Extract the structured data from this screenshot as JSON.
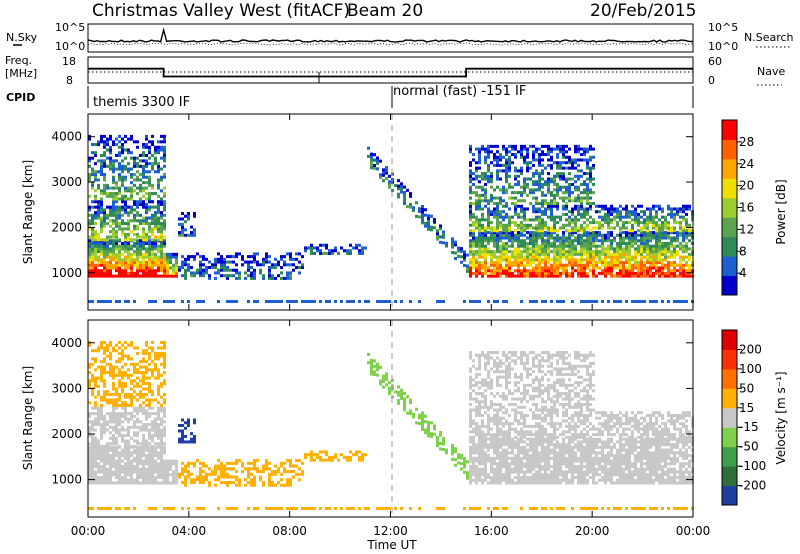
{
  "header": {
    "station": "Christmas Valley West (fitACF)",
    "beam": "Beam 20",
    "date": "20/Feb/2015"
  },
  "noise_panel": {
    "left_label": "N.Sky",
    "right_label": "N.Search",
    "y_ticks": [
      "10^5",
      "10^0"
    ],
    "right_ticks": [
      "10^5",
      "10^0"
    ]
  },
  "freq_panel": {
    "left_label_1": "Freq.",
    "left_label_2": "[MHz]",
    "right_label": "Nave",
    "left_ticks": [
      "18",
      "8"
    ],
    "right_ticks": [
      "60",
      "0"
    ]
  },
  "cpid_panel": {
    "label": "CPID",
    "modes": [
      "themis 3300 IF",
      "normal (fast) -151 IF"
    ]
  },
  "power_panel": {
    "ylabel": "Slant Range [km]",
    "colorbar_label": "Power [dB]",
    "colorbar_ticks": [
      "28",
      "24",
      "20",
      "16",
      "12",
      "8",
      "4"
    ],
    "colors": [
      "#0000cc",
      "#1d5fd1",
      "#2e8b57",
      "#5aa34f",
      "#9acd32",
      "#f0e000",
      "#ffa500",
      "#ff6000",
      "#ff0000"
    ]
  },
  "velocity_panel": {
    "ylabel": "Slant Range [km]",
    "colorbar_label": "Velocity [m s⁻¹]",
    "colorbar_ticks": [
      "200",
      "100",
      "50",
      "15",
      "-15",
      "-50",
      "-100",
      "-200"
    ],
    "colors": [
      "#1e3fa0",
      "#2e6e3a",
      "#3fa04a",
      "#7fd04a",
      "#c8c8c8",
      "#ffb000",
      "#ff7000",
      "#ff3000",
      "#e00000"
    ]
  },
  "chart_data": {
    "type": "heatmap",
    "title": "Christmas Valley West (fitACF) Beam 20 20/Feb/2015",
    "xlabel": "Time UT",
    "ylabel": "Slant Range [km]",
    "x_ticks": [
      "00:00",
      "04:00",
      "08:00",
      "12:00",
      "16:00",
      "20:00",
      "00:00"
    ],
    "x_range_hours": [
      0,
      24
    ],
    "y_ticks": [
      1000,
      2000,
      3000,
      4000
    ],
    "ylim_km": [
      180,
      4500
    ],
    "frequency_mhz": [
      {
        "from_h": 0,
        "to_h": 3,
        "value": 13.5
      },
      {
        "from_h": 3,
        "to_h": 15,
        "value": 10.5
      },
      {
        "from_h": 15,
        "to_h": 24,
        "value": 13.5
      }
    ],
    "cpid_modes": [
      {
        "from_h": 0,
        "to_h": 12,
        "name": "themis 3300 IF"
      },
      {
        "from_h": 12,
        "to_h": 24,
        "name": "normal (fast) -151 IF"
      }
    ],
    "power_scale_db": [
      0,
      30
    ],
    "velocity_scale_ms": [
      -200,
      200
    ]
  }
}
